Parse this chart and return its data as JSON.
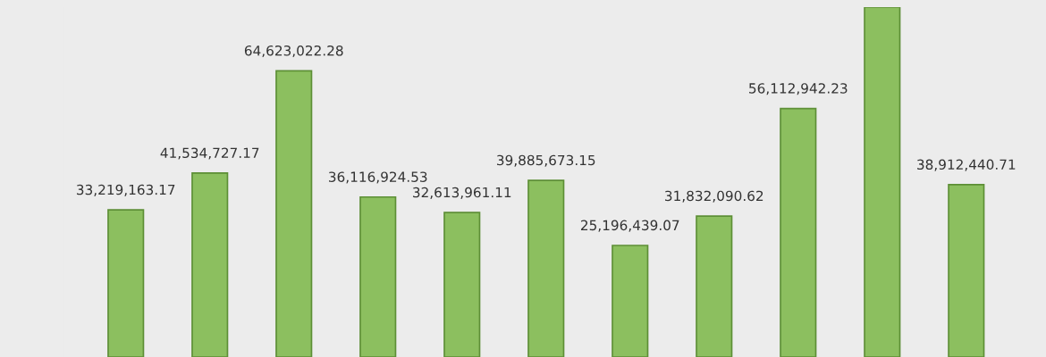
{
  "chart_data": {
    "type": "bar",
    "categories": [
      null,
      null,
      null,
      null,
      null,
      null,
      null,
      null,
      null,
      null,
      null
    ],
    "values": [
      33219163.17,
      41534727.17,
      64623022.28,
      36116924.53,
      32613961.11,
      39885673.15,
      25196439.07,
      31832090.62,
      56112942.23,
      79000000,
      38912440.71
    ],
    "value_labels": [
      "33,219,163.17",
      "41,534,727.17",
      "64,623,022.28",
      "36,116,924.53",
      "32,613,961.11",
      "39,885,673.15",
      "25,196,439.07",
      "31,832,090.62",
      "56,112,942.23",
      null,
      "38,912,440.71"
    ],
    "color": "#8cbf5f",
    "grid": false,
    "legend": false
  }
}
